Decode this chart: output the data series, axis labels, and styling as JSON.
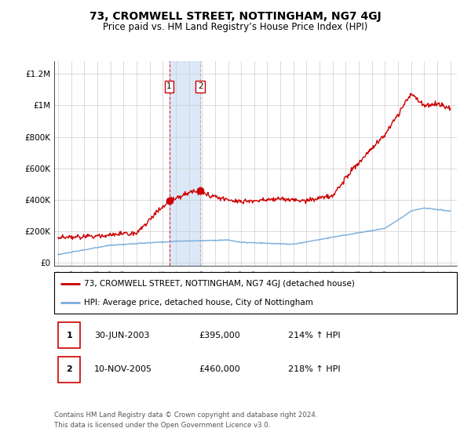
{
  "title": "73, CROMWELL STREET, NOTTINGHAM, NG7 4GJ",
  "subtitle": "Price paid vs. HM Land Registry’s House Price Index (HPI)",
  "title_fontsize": 10,
  "subtitle_fontsize": 8.5,
  "ylabel_ticks": [
    "£0",
    "£200K",
    "£400K",
    "£600K",
    "£800K",
    "£1M",
    "£1.2M"
  ],
  "ytick_values": [
    0,
    200000,
    400000,
    600000,
    800000,
    1000000,
    1200000
  ],
  "xlim": [
    1994.7,
    2025.5
  ],
  "ylim": [
    -20000,
    1280000
  ],
  "sale_dates": [
    2003.5,
    2005.88
  ],
  "sale_prices": [
    395000,
    460000
  ],
  "marker_labels": [
    "1",
    "2"
  ],
  "shade_color": "#d6e4f7",
  "red_color": "#cc0000",
  "blue_color": "#7aaddb",
  "legend_label_red": "73, CROMWELL STREET, NOTTINGHAM, NG7 4GJ (detached house)",
  "legend_label_blue": "HPI: Average price, detached house, City of Nottingham",
  "annotation_rows": [
    {
      "num": "1",
      "date": "30-JUN-2003",
      "price": "£395,000",
      "hpi": "214% ↑ HPI"
    },
    {
      "num": "2",
      "date": "10-NOV-2005",
      "price": "£460,000",
      "hpi": "218% ↑ HPI"
    }
  ],
  "footer": "Contains HM Land Registry data © Crown copyright and database right 2024.\nThis data is licensed under the Open Government Licence v3.0.",
  "background_color": "#ffffff",
  "plot_bg_color": "#ffffff",
  "grid_color": "#cccccc"
}
